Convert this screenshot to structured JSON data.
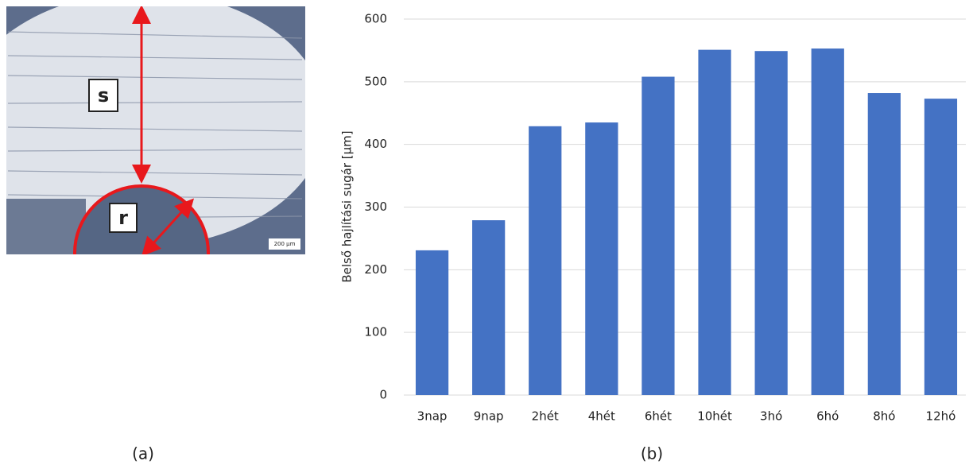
{
  "panel_a": {
    "labels": [
      "s",
      "r"
    ],
    "scale_bar": "200 µm",
    "caption": "(a)"
  },
  "chart_data": {
    "type": "bar",
    "y_label": "Belső hajlítási sugár [µm]",
    "categories": [
      "3nap",
      "9nap",
      "2hét",
      "4hét",
      "6hét",
      "10hét",
      "3hó",
      "6hó",
      "8hó",
      "12hó"
    ],
    "values": [
      231,
      279,
      429,
      435,
      508,
      551,
      549,
      553,
      482,
      473
    ],
    "color": "#4472c4",
    "ylim": [
      0,
      600
    ],
    "yticks": [
      0,
      100,
      200,
      300,
      400,
      500,
      600
    ],
    "grid": true,
    "caption": "(b)"
  }
}
